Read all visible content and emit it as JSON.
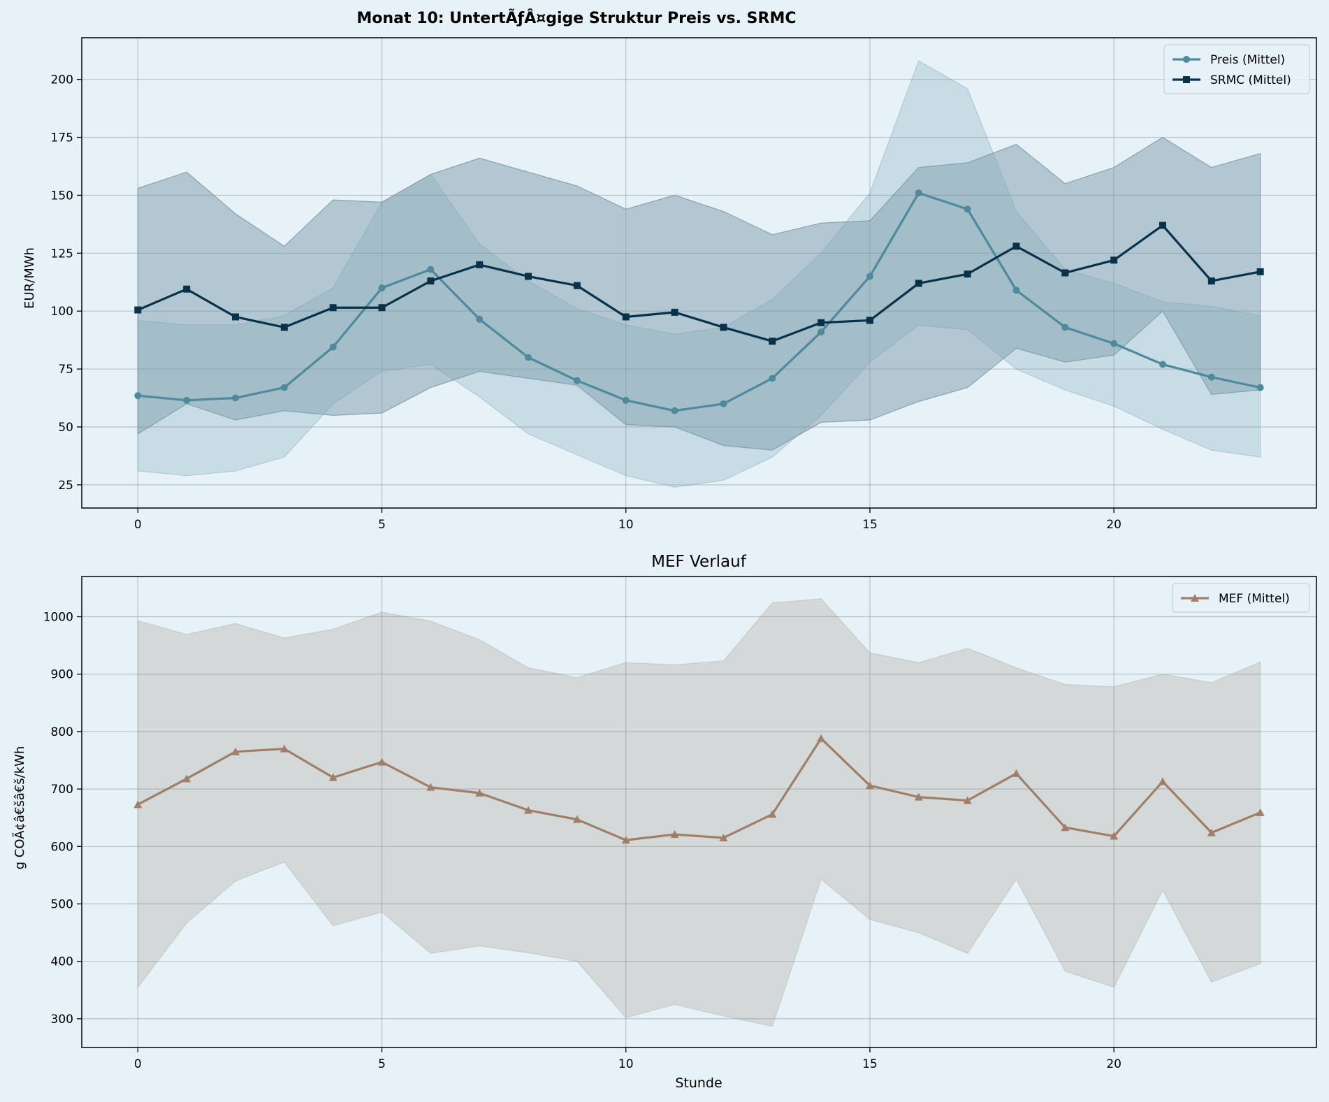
{
  "figure": {
    "background": "#e6f1f8"
  },
  "chart_data": [
    {
      "id": "top",
      "type": "line",
      "title": "Monat 10: UntertÃƒÂ¤gige Struktur Preis vs. SRMC",
      "xlabel": "",
      "ylabel": "EUR/MWh",
      "xlim": [
        -1.15,
        24.15
      ],
      "ylim": [
        15,
        218
      ],
      "xticks": [
        0,
        5,
        10,
        15,
        20
      ],
      "yticks": [
        25,
        50,
        75,
        100,
        125,
        150,
        175,
        200
      ],
      "grid": true,
      "legend": "top-right",
      "x": [
        0,
        1,
        2,
        3,
        4,
        5,
        6,
        7,
        8,
        9,
        10,
        11,
        12,
        13,
        14,
        15,
        16,
        17,
        18,
        19,
        20,
        21,
        22,
        23
      ],
      "bands": [
        {
          "color": "#aac8d4",
          "opacity": 0.5,
          "lower": [
            31,
            29,
            31,
            37,
            60,
            74,
            77,
            63,
            47,
            38,
            29,
            24,
            27,
            37,
            55,
            78,
            94,
            92,
            75,
            66,
            59,
            49,
            40,
            37
          ],
          "upper": [
            96,
            94,
            94,
            98,
            110,
            147,
            159,
            129,
            113,
            101,
            94,
            90,
            93,
            105,
            125,
            151,
            208,
            196,
            143,
            118,
            112,
            104,
            102,
            98
          ]
        },
        {
          "color": "#7e9dab",
          "opacity": 0.5,
          "lower": [
            47,
            60,
            53,
            57,
            55,
            56,
            67,
            74,
            71,
            68,
            51,
            50,
            42,
            40,
            52,
            53,
            61,
            67,
            84,
            78,
            81,
            100,
            64,
            66
          ],
          "upper": [
            153,
            160,
            142,
            128,
            148,
            147,
            159,
            166,
            160,
            154,
            144,
            150,
            143,
            133,
            138,
            139,
            162,
            164,
            172,
            155,
            162,
            175,
            162,
            168
          ]
        }
      ],
      "series": [
        {
          "name": "Preis (Mittel)",
          "color": "#4d8a9b",
          "marker": "circle",
          "values": [
            63.5,
            61.5,
            62.5,
            67,
            84.5,
            110,
            118,
            96.5,
            80,
            70,
            61.5,
            57,
            60,
            71,
            91,
            115,
            151,
            144,
            109,
            93,
            86,
            77,
            71.5,
            67
          ]
        },
        {
          "name": "SRMC (Mittel)",
          "color": "#07324a",
          "marker": "square",
          "values": [
            100.5,
            109.5,
            97.5,
            93,
            101.5,
            101.5,
            113,
            120,
            115,
            111,
            97.5,
            99.5,
            93,
            87,
            95,
            96,
            112,
            116,
            128,
            116.5,
            122,
            137,
            113,
            117
          ]
        }
      ]
    },
    {
      "id": "bottom",
      "type": "line",
      "title": "MEF Verlauf",
      "xlabel": "Stunde",
      "ylabel": "g COÃ¢â€šâ€š/kWh",
      "xlim": [
        -1.15,
        24.15
      ],
      "ylim": [
        250,
        1070
      ],
      "xticks": [
        0,
        5,
        10,
        15,
        20
      ],
      "yticks": [
        300,
        400,
        500,
        600,
        700,
        800,
        900,
        1000
      ],
      "grid": true,
      "legend": "top-right",
      "x": [
        0,
        1,
        2,
        3,
        4,
        5,
        6,
        7,
        8,
        9,
        10,
        11,
        12,
        13,
        14,
        15,
        16,
        17,
        18,
        19,
        20,
        21,
        22,
        23
      ],
      "bands": [
        {
          "color": "#c7c8c4",
          "opacity": 0.6,
          "lower": [
            355,
            467,
            540,
            573,
            462,
            486,
            414,
            427,
            415,
            400,
            302,
            325,
            305,
            287,
            543,
            473,
            450,
            414,
            543,
            383,
            355,
            524,
            364,
            396
          ],
          "upper": [
            993,
            969,
            988,
            963,
            978,
            1008,
            992,
            960,
            911,
            894,
            920,
            916,
            923,
            1024,
            1031,
            937,
            920,
            945,
            911,
            882,
            878,
            900,
            885,
            921
          ]
        }
      ],
      "series": [
        {
          "name": "MEF (Mittel)",
          "color": "#a07e68",
          "marker": "triangle",
          "values": [
            673,
            718,
            765,
            770,
            720,
            747,
            703,
            693,
            663,
            647,
            611,
            621,
            615,
            656,
            788,
            706,
            686,
            680,
            727,
            633,
            618,
            713,
            624,
            659
          ]
        }
      ]
    }
  ]
}
